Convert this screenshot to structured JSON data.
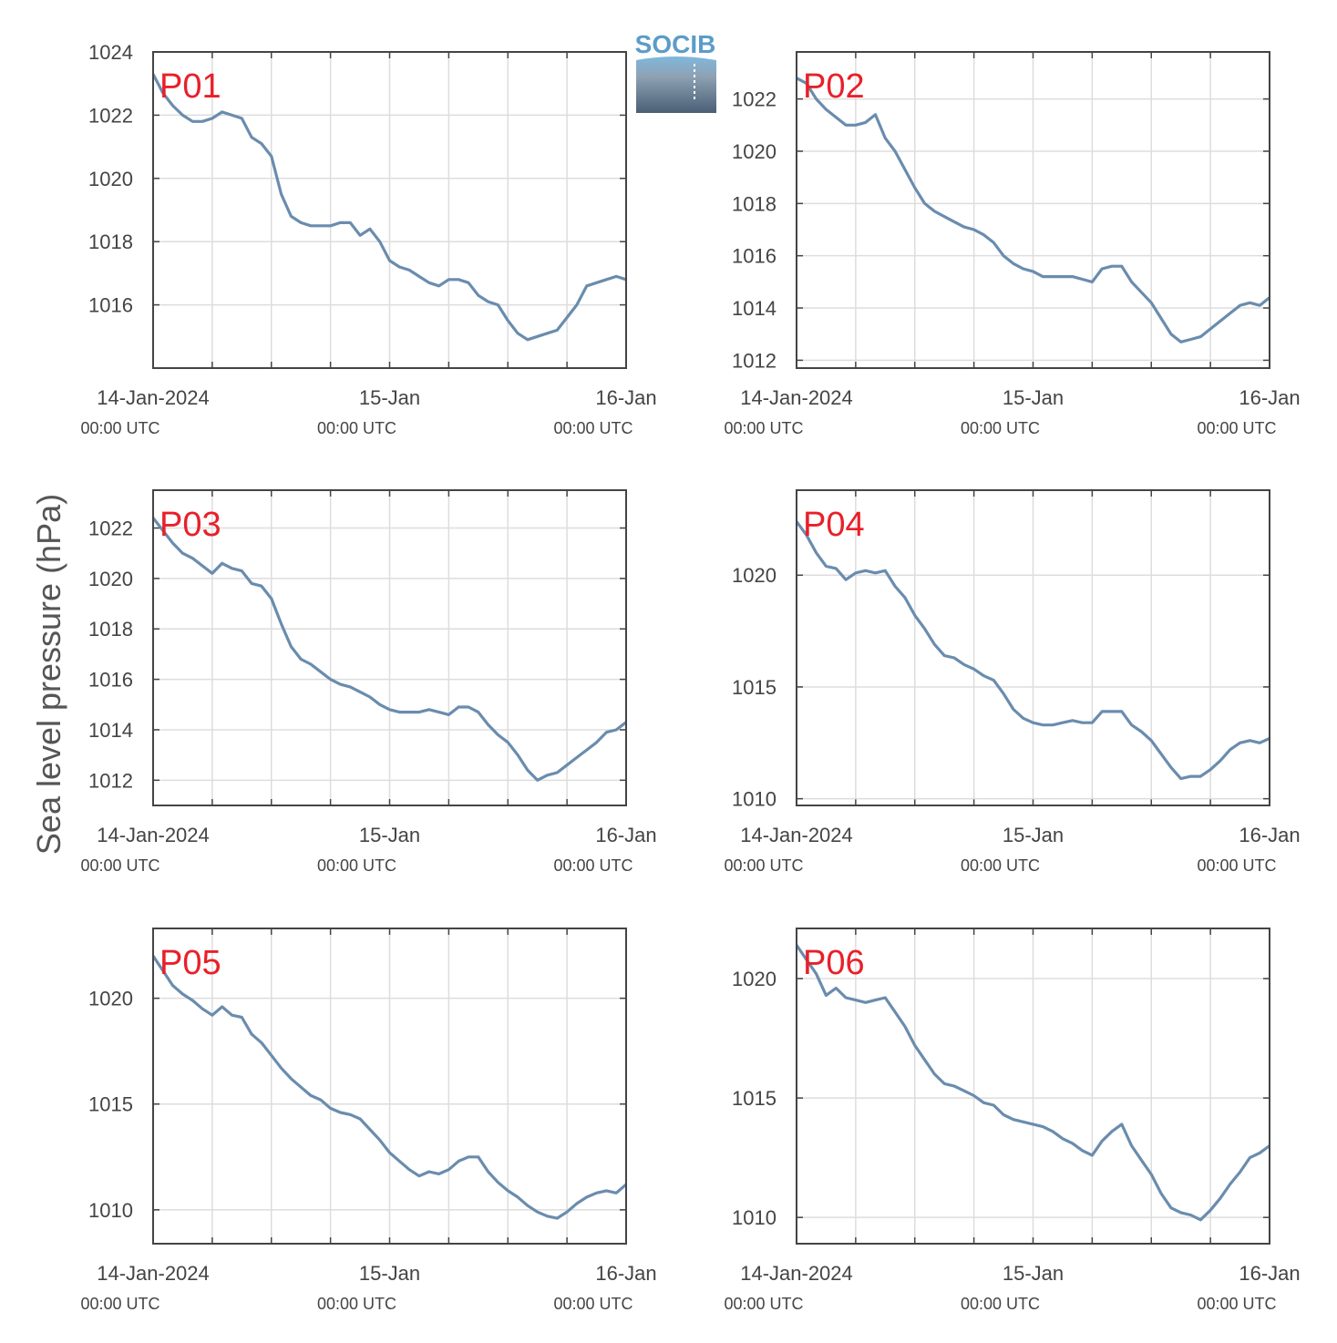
{
  "figure": {
    "ylabel": "Sea level pressure (hPa)",
    "logo_text": "SOCIB",
    "line_color": "#6a8cae",
    "label_color": "#e8202a"
  },
  "chart_data": [
    {
      "type": "line",
      "title": "P01",
      "xlim": [
        0,
        48
      ],
      "ylim": [
        1014,
        1024
      ],
      "yticks": [
        1016,
        1018,
        1020,
        1022,
        1024
      ],
      "xtick_labels": [
        {
          "x": 0,
          "date": "14-Jan-2024",
          "time": "00:00 UTC"
        },
        {
          "x": 24,
          "date": "15-Jan",
          "time": "00:00 UTC"
        },
        {
          "x": 48,
          "date": "16-Jan",
          "time": "00:00 UTC"
        }
      ],
      "series": [
        {
          "x": [
            0,
            1,
            2,
            3,
            4,
            5,
            6,
            7,
            8,
            9,
            10,
            11,
            12,
            13,
            14,
            15,
            16,
            17,
            18,
            19,
            20,
            21,
            22,
            23,
            24,
            25,
            26,
            27,
            28,
            29,
            30,
            31,
            32,
            33,
            34,
            35,
            36,
            37,
            38,
            39,
            40,
            41,
            42,
            43,
            44,
            45,
            46,
            47,
            48
          ],
          "y": [
            1023.3,
            1022.7,
            1022.3,
            1022.0,
            1021.8,
            1021.8,
            1021.9,
            1022.1,
            1022.0,
            1021.9,
            1021.3,
            1021.1,
            1020.7,
            1019.5,
            1018.8,
            1018.6,
            1018.5,
            1018.5,
            1018.5,
            1018.6,
            1018.6,
            1018.2,
            1018.4,
            1018.0,
            1017.4,
            1017.2,
            1017.1,
            1016.9,
            1016.7,
            1016.6,
            1016.8,
            1016.8,
            1016.7,
            1016.3,
            1016.1,
            1016.0,
            1015.5,
            1015.1,
            1014.9,
            1015.0,
            1015.1,
            1015.2,
            1015.6,
            1016.0,
            1016.6,
            1016.7,
            1016.8,
            1016.9,
            1016.8
          ]
        }
      ]
    },
    {
      "type": "line",
      "title": "P02",
      "xlim": [
        0,
        48
      ],
      "ylim": [
        1011.7,
        1023.8
      ],
      "yticks": [
        1012,
        1014,
        1016,
        1018,
        1020,
        1022
      ],
      "xtick_labels": [
        {
          "x": 0,
          "date": "14-Jan-2024",
          "time": "00:00 UTC"
        },
        {
          "x": 24,
          "date": "15-Jan",
          "time": "00:00 UTC"
        },
        {
          "x": 48,
          "date": "16-Jan",
          "time": "00:00 UTC"
        }
      ],
      "series": [
        {
          "x": [
            0,
            1,
            2,
            3,
            4,
            5,
            6,
            7,
            8,
            9,
            10,
            11,
            12,
            13,
            14,
            15,
            16,
            17,
            18,
            19,
            20,
            21,
            22,
            23,
            24,
            25,
            26,
            27,
            28,
            29,
            30,
            31,
            32,
            33,
            34,
            35,
            36,
            37,
            38,
            39,
            40,
            41,
            42,
            43,
            44,
            45,
            46,
            47,
            48
          ],
          "y": [
            1022.8,
            1022.6,
            1022.0,
            1021.6,
            1021.3,
            1021.0,
            1021.0,
            1021.1,
            1021.4,
            1020.5,
            1020.0,
            1019.3,
            1018.6,
            1018.0,
            1017.7,
            1017.5,
            1017.3,
            1017.1,
            1017.0,
            1016.8,
            1016.5,
            1016.0,
            1015.7,
            1015.5,
            1015.4,
            1015.2,
            1015.2,
            1015.2,
            1015.2,
            1015.1,
            1015.0,
            1015.5,
            1015.6,
            1015.6,
            1015.0,
            1014.6,
            1014.2,
            1013.6,
            1013.0,
            1012.7,
            1012.8,
            1012.9,
            1013.2,
            1013.5,
            1013.8,
            1014.1,
            1014.2,
            1014.1,
            1014.4
          ]
        }
      ]
    },
    {
      "type": "line",
      "title": "P03",
      "xlim": [
        0,
        48
      ],
      "ylim": [
        1011,
        1023.5
      ],
      "yticks": [
        1012,
        1014,
        1016,
        1018,
        1020,
        1022
      ],
      "xtick_labels": [
        {
          "x": 0,
          "date": "14-Jan-2024",
          "time": "00:00 UTC"
        },
        {
          "x": 24,
          "date": "15-Jan",
          "time": "00:00 UTC"
        },
        {
          "x": 48,
          "date": "16-Jan",
          "time": "00:00 UTC"
        }
      ],
      "series": [
        {
          "x": [
            0,
            1,
            2,
            3,
            4,
            5,
            6,
            7,
            8,
            9,
            10,
            11,
            12,
            13,
            14,
            15,
            16,
            17,
            18,
            19,
            20,
            21,
            22,
            23,
            24,
            25,
            26,
            27,
            28,
            29,
            30,
            31,
            32,
            33,
            34,
            35,
            36,
            37,
            38,
            39,
            40,
            41,
            42,
            43,
            44,
            45,
            46,
            47,
            48
          ],
          "y": [
            1022.4,
            1021.9,
            1021.4,
            1021.0,
            1020.8,
            1020.5,
            1020.2,
            1020.6,
            1020.4,
            1020.3,
            1019.8,
            1019.7,
            1019.2,
            1018.2,
            1017.3,
            1016.8,
            1016.6,
            1016.3,
            1016.0,
            1015.8,
            1015.7,
            1015.5,
            1015.3,
            1015.0,
            1014.8,
            1014.7,
            1014.7,
            1014.7,
            1014.8,
            1014.7,
            1014.6,
            1014.9,
            1014.9,
            1014.7,
            1014.2,
            1013.8,
            1013.5,
            1013.0,
            1012.4,
            1012.0,
            1012.2,
            1012.3,
            1012.6,
            1012.9,
            1013.2,
            1013.5,
            1013.9,
            1014.0,
            1014.3
          ]
        }
      ]
    },
    {
      "type": "line",
      "title": "P04",
      "xlim": [
        0,
        48
      ],
      "ylim": [
        1009.7,
        1023.8
      ],
      "yticks": [
        1010,
        1015,
        1020
      ],
      "xtick_labels": [
        {
          "x": 0,
          "date": "14-Jan-2024",
          "time": "00:00 UTC"
        },
        {
          "x": 24,
          "date": "15-Jan",
          "time": "00:00 UTC"
        },
        {
          "x": 48,
          "date": "16-Jan",
          "time": "00:00 UTC"
        }
      ],
      "series": [
        {
          "x": [
            0,
            1,
            2,
            3,
            4,
            5,
            6,
            7,
            8,
            9,
            10,
            11,
            12,
            13,
            14,
            15,
            16,
            17,
            18,
            19,
            20,
            21,
            22,
            23,
            24,
            25,
            26,
            27,
            28,
            29,
            30,
            31,
            32,
            33,
            34,
            35,
            36,
            37,
            38,
            39,
            40,
            41,
            42,
            43,
            44,
            45,
            46,
            47,
            48
          ],
          "y": [
            1022.4,
            1021.8,
            1021.0,
            1020.4,
            1020.3,
            1019.8,
            1020.1,
            1020.2,
            1020.1,
            1020.2,
            1019.5,
            1019.0,
            1018.2,
            1017.6,
            1016.9,
            1016.4,
            1016.3,
            1016.0,
            1015.8,
            1015.5,
            1015.3,
            1014.7,
            1014.0,
            1013.6,
            1013.4,
            1013.3,
            1013.3,
            1013.4,
            1013.5,
            1013.4,
            1013.4,
            1013.9,
            1013.9,
            1013.9,
            1013.3,
            1013.0,
            1012.6,
            1012.0,
            1011.4,
            1010.9,
            1011.0,
            1011.0,
            1011.3,
            1011.7,
            1012.2,
            1012.5,
            1012.6,
            1012.5,
            1012.7
          ]
        }
      ]
    },
    {
      "type": "line",
      "title": "P05",
      "xlim": [
        0,
        48
      ],
      "ylim": [
        1008.4,
        1023.3
      ],
      "yticks": [
        1010,
        1015,
        1020
      ],
      "xtick_labels": [
        {
          "x": 0,
          "date": "14-Jan-2024",
          "time": "00:00 UTC"
        },
        {
          "x": 24,
          "date": "15-Jan",
          "time": "00:00 UTC"
        },
        {
          "x": 48,
          "date": "16-Jan",
          "time": "00:00 UTC"
        }
      ],
      "series": [
        {
          "x": [
            0,
            1,
            2,
            3,
            4,
            5,
            6,
            7,
            8,
            9,
            10,
            11,
            12,
            13,
            14,
            15,
            16,
            17,
            18,
            19,
            20,
            21,
            22,
            23,
            24,
            25,
            26,
            27,
            28,
            29,
            30,
            31,
            32,
            33,
            34,
            35,
            36,
            37,
            38,
            39,
            40,
            41,
            42,
            43,
            44,
            45,
            46,
            47,
            48
          ],
          "y": [
            1022.0,
            1021.3,
            1020.6,
            1020.2,
            1019.9,
            1019.5,
            1019.2,
            1019.6,
            1019.2,
            1019.1,
            1018.3,
            1017.9,
            1017.3,
            1016.7,
            1016.2,
            1015.8,
            1015.4,
            1015.2,
            1014.8,
            1014.6,
            1014.5,
            1014.3,
            1013.8,
            1013.3,
            1012.7,
            1012.3,
            1011.9,
            1011.6,
            1011.8,
            1011.7,
            1011.9,
            1012.3,
            1012.5,
            1012.5,
            1011.8,
            1011.3,
            1010.9,
            1010.6,
            1010.2,
            1009.9,
            1009.7,
            1009.6,
            1009.9,
            1010.3,
            1010.6,
            1010.8,
            1010.9,
            1010.8,
            1011.2
          ]
        }
      ]
    },
    {
      "type": "line",
      "title": "P06",
      "xlim": [
        0,
        48
      ],
      "ylim": [
        1008.9,
        1022.1
      ],
      "yticks": [
        1010,
        1015,
        1020
      ],
      "xtick_labels": [
        {
          "x": 0,
          "date": "14-Jan-2024",
          "time": "00:00 UTC"
        },
        {
          "x": 24,
          "date": "15-Jan",
          "time": "00:00 UTC"
        },
        {
          "x": 48,
          "date": "16-Jan",
          "time": "00:00 UTC"
        }
      ],
      "series": [
        {
          "x": [
            0,
            1,
            2,
            3,
            4,
            5,
            6,
            7,
            8,
            9,
            10,
            11,
            12,
            13,
            14,
            15,
            16,
            17,
            18,
            19,
            20,
            21,
            22,
            23,
            24,
            25,
            26,
            27,
            28,
            29,
            30,
            31,
            32,
            33,
            34,
            35,
            36,
            37,
            38,
            39,
            40,
            41,
            42,
            43,
            44,
            45,
            46,
            47,
            48
          ],
          "y": [
            1021.4,
            1020.8,
            1020.2,
            1019.3,
            1019.6,
            1019.2,
            1019.1,
            1019.0,
            1019.1,
            1019.2,
            1018.6,
            1018.0,
            1017.2,
            1016.6,
            1016.0,
            1015.6,
            1015.5,
            1015.3,
            1015.1,
            1014.8,
            1014.7,
            1014.3,
            1014.1,
            1014.0,
            1013.9,
            1013.8,
            1013.6,
            1013.3,
            1013.1,
            1012.8,
            1012.6,
            1013.2,
            1013.6,
            1013.9,
            1013.0,
            1012.4,
            1011.8,
            1011.0,
            1010.4,
            1010.2,
            1010.1,
            1009.9,
            1010.3,
            1010.8,
            1011.4,
            1011.9,
            1012.5,
            1012.7,
            1013.0
          ]
        }
      ]
    }
  ]
}
